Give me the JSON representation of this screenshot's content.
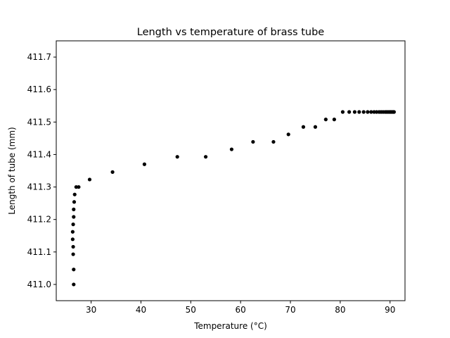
{
  "chart_data": {
    "type": "scatter",
    "title": "Length vs temperature of brass tube",
    "xlabel": "Temperature (°C)",
    "ylabel": "Length of tube (mm)",
    "xlim": [
      23,
      93
    ],
    "ylim": [
      410.95,
      411.75
    ],
    "xticks": [
      30,
      40,
      50,
      60,
      70,
      80,
      90
    ],
    "yticks": [
      411.0,
      411.1,
      411.2,
      411.3,
      411.4,
      411.5,
      411.6,
      411.7
    ],
    "ytick_labels": [
      "411.0",
      "411.1",
      "411.2",
      "411.3",
      "411.4",
      "411.5",
      "411.6",
      "411.7"
    ],
    "grid": false,
    "marker_color": "#000000",
    "series": [
      {
        "x": [
          26.5,
          26.5,
          26.4,
          26.4,
          26.3,
          26.3,
          26.4,
          26.5,
          26.5,
          26.6,
          26.7,
          27.0,
          27.5,
          29.7,
          34.3,
          40.7,
          47.3,
          53.0,
          58.2,
          62.5,
          66.6,
          69.6,
          72.6,
          75.0,
          77.1,
          78.8,
          80.5,
          81.8,
          82.9,
          83.8,
          84.7,
          85.5,
          86.2,
          86.8,
          87.3,
          87.8,
          88.2,
          88.6,
          89.0,
          89.3,
          89.6,
          89.9,
          90.1,
          90.3,
          90.5,
          90.7,
          90.8
        ],
        "y": [
          411.0,
          411.046,
          411.093,
          411.116,
          411.139,
          411.162,
          411.185,
          411.208,
          411.231,
          411.254,
          411.277,
          411.3,
          411.3,
          411.323,
          411.346,
          411.37,
          411.393,
          411.393,
          411.416,
          411.439,
          411.439,
          411.462,
          411.485,
          411.485,
          411.508,
          411.508,
          411.531,
          411.531,
          411.531,
          411.531,
          411.531,
          411.531,
          411.531,
          411.531,
          411.531,
          411.531,
          411.531,
          411.531,
          411.531,
          411.531,
          411.531,
          411.531,
          411.531,
          411.531,
          411.531,
          411.531,
          411.531
        ]
      }
    ]
  }
}
